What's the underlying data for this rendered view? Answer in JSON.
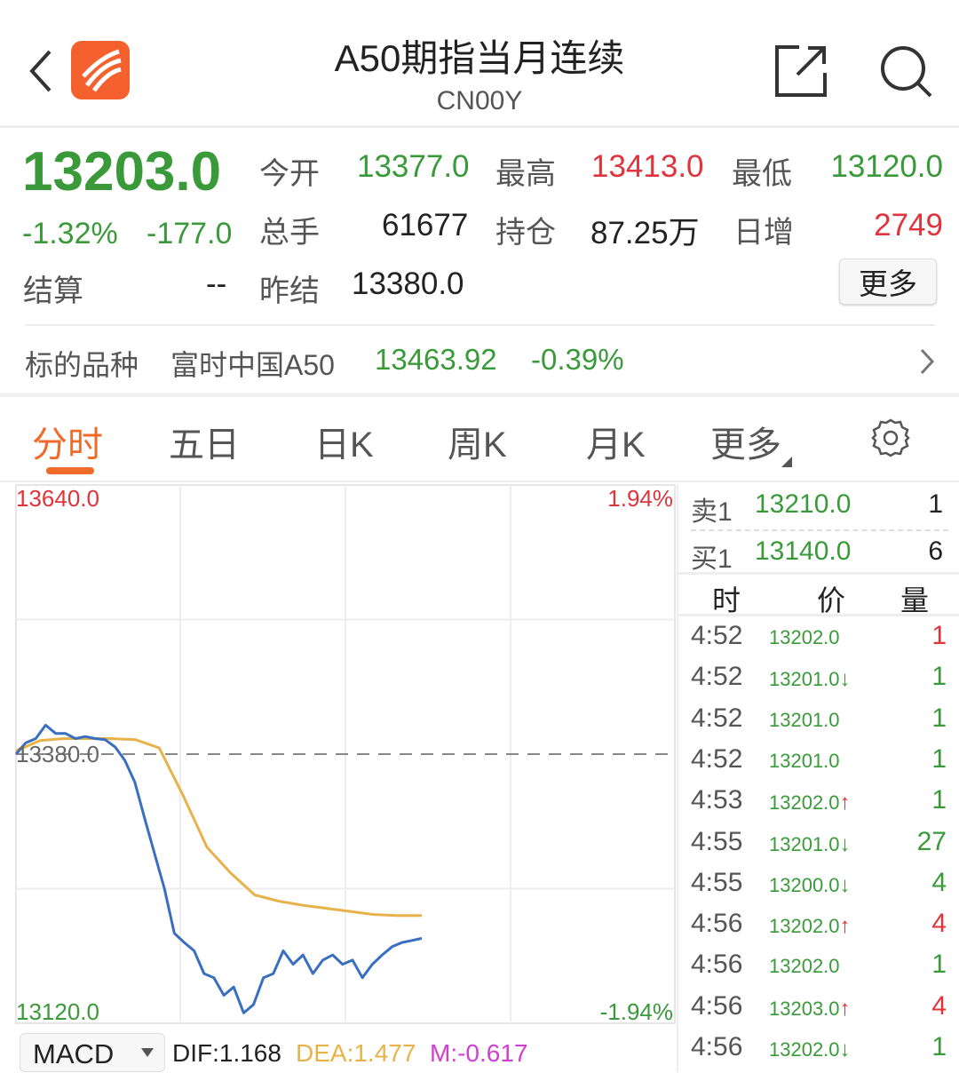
{
  "header": {
    "title": "A50期指当月连续",
    "code": "CN00Y",
    "icons": [
      "back-icon",
      "app-logo",
      "share-icon",
      "search-icon"
    ]
  },
  "quote": {
    "last": "13203.0",
    "change_pct": "-1.32%",
    "change": "-177.0",
    "fields": [
      {
        "label": "今开",
        "value": "13377.0",
        "color": "green"
      },
      {
        "label": "最高",
        "value": "13413.0",
        "color": "red"
      },
      {
        "label": "最低",
        "value": "13120.0",
        "color": "green"
      },
      {
        "label": "总手",
        "value": "61677",
        "color": "black"
      },
      {
        "label": "持仓",
        "value": "87.25万",
        "color": "black"
      },
      {
        "label": "日增",
        "value": "2749",
        "color": "red"
      },
      {
        "label": "结算",
        "value": "--",
        "color": "black"
      },
      {
        "label": "昨结",
        "value": "13380.0",
        "color": "black"
      }
    ],
    "more_label": "更多"
  },
  "underlying": {
    "label": "标的品种",
    "name": "富时中国A50",
    "price": "13463.92",
    "change_pct": "-0.39%"
  },
  "tabs": [
    {
      "label": "分时",
      "active": true
    },
    {
      "label": "五日"
    },
    {
      "label": "日K"
    },
    {
      "label": "周K"
    },
    {
      "label": "月K"
    },
    {
      "label": "更多"
    }
  ],
  "colors": {
    "green": "#3a9a3a",
    "red": "#e0343c",
    "accent": "#f06a2a",
    "price_line": "#3a6fc0",
    "avg_line": "#e8b24a",
    "macd_m": "#d040d0"
  },
  "chart_data": {
    "type": "line",
    "ylim": [
      13120.0,
      13640.0
    ],
    "reference": 13380.0,
    "y_labels": {
      "top": "13640.0",
      "bottom": "13120.0",
      "ref": "13380.0",
      "top_pct": "1.94%",
      "bottom_pct": "-1.94%"
    },
    "series": [
      {
        "values": [
          13380,
          13391,
          13395,
          13408,
          13400,
          13400,
          13395,
          13397,
          13395,
          13394,
          13387,
          13374,
          13353,
          13318,
          13284,
          13250,
          13207,
          13198,
          13190,
          13168,
          13164,
          13147,
          13155,
          13130,
          13138,
          13164,
          13168,
          13190,
          13177,
          13186,
          13168,
          13181,
          13186,
          13177,
          13181,
          13164,
          13177,
          13186,
          13194,
          13198,
          13200,
          13202
        ]
      },
      {
        "values": [
          13383,
          13393,
          13395,
          13395,
          13395,
          13394,
          13386,
          13340,
          13290,
          13265,
          13244,
          13238,
          13234,
          13231,
          13228,
          13225,
          13224,
          13224
        ]
      }
    ],
    "grid": true
  },
  "indicator": {
    "name": "MACD",
    "dif": "DIF:1.168",
    "dea": "DEA:1.477",
    "m": "M:-0.617"
  },
  "orderbook": {
    "sell": {
      "label": "卖1",
      "price": "13210.0",
      "vol": "1"
    },
    "buy": {
      "label": "买1",
      "price": "13140.0",
      "vol": "6"
    }
  },
  "ticks_header": {
    "time": "时",
    "price": "价",
    "vol": "量"
  },
  "ticks": [
    {
      "time": "4:52",
      "price": "13202.0",
      "dir": "",
      "vol": "1",
      "vc": "red"
    },
    {
      "time": "4:52",
      "price": "13201.0",
      "dir": "down",
      "vol": "1",
      "vc": "green"
    },
    {
      "time": "4:52",
      "price": "13201.0",
      "dir": "",
      "vol": "1",
      "vc": "green"
    },
    {
      "time": "4:52",
      "price": "13201.0",
      "dir": "",
      "vol": "1",
      "vc": "green"
    },
    {
      "time": "4:53",
      "price": "13202.0",
      "dir": "up",
      "vol": "1",
      "vc": "green"
    },
    {
      "time": "4:55",
      "price": "13201.0",
      "dir": "down",
      "vol": "27",
      "vc": "green"
    },
    {
      "time": "4:55",
      "price": "13200.0",
      "dir": "down",
      "vol": "4",
      "vc": "green"
    },
    {
      "time": "4:56",
      "price": "13202.0",
      "dir": "up",
      "vol": "4",
      "vc": "red"
    },
    {
      "time": "4:56",
      "price": "13202.0",
      "dir": "",
      "vol": "1",
      "vc": "green"
    },
    {
      "time": "4:56",
      "price": "13203.0",
      "dir": "up",
      "vol": "4",
      "vc": "red"
    },
    {
      "time": "4:56",
      "price": "13202.0",
      "dir": "down",
      "vol": "1",
      "vc": "green"
    }
  ]
}
